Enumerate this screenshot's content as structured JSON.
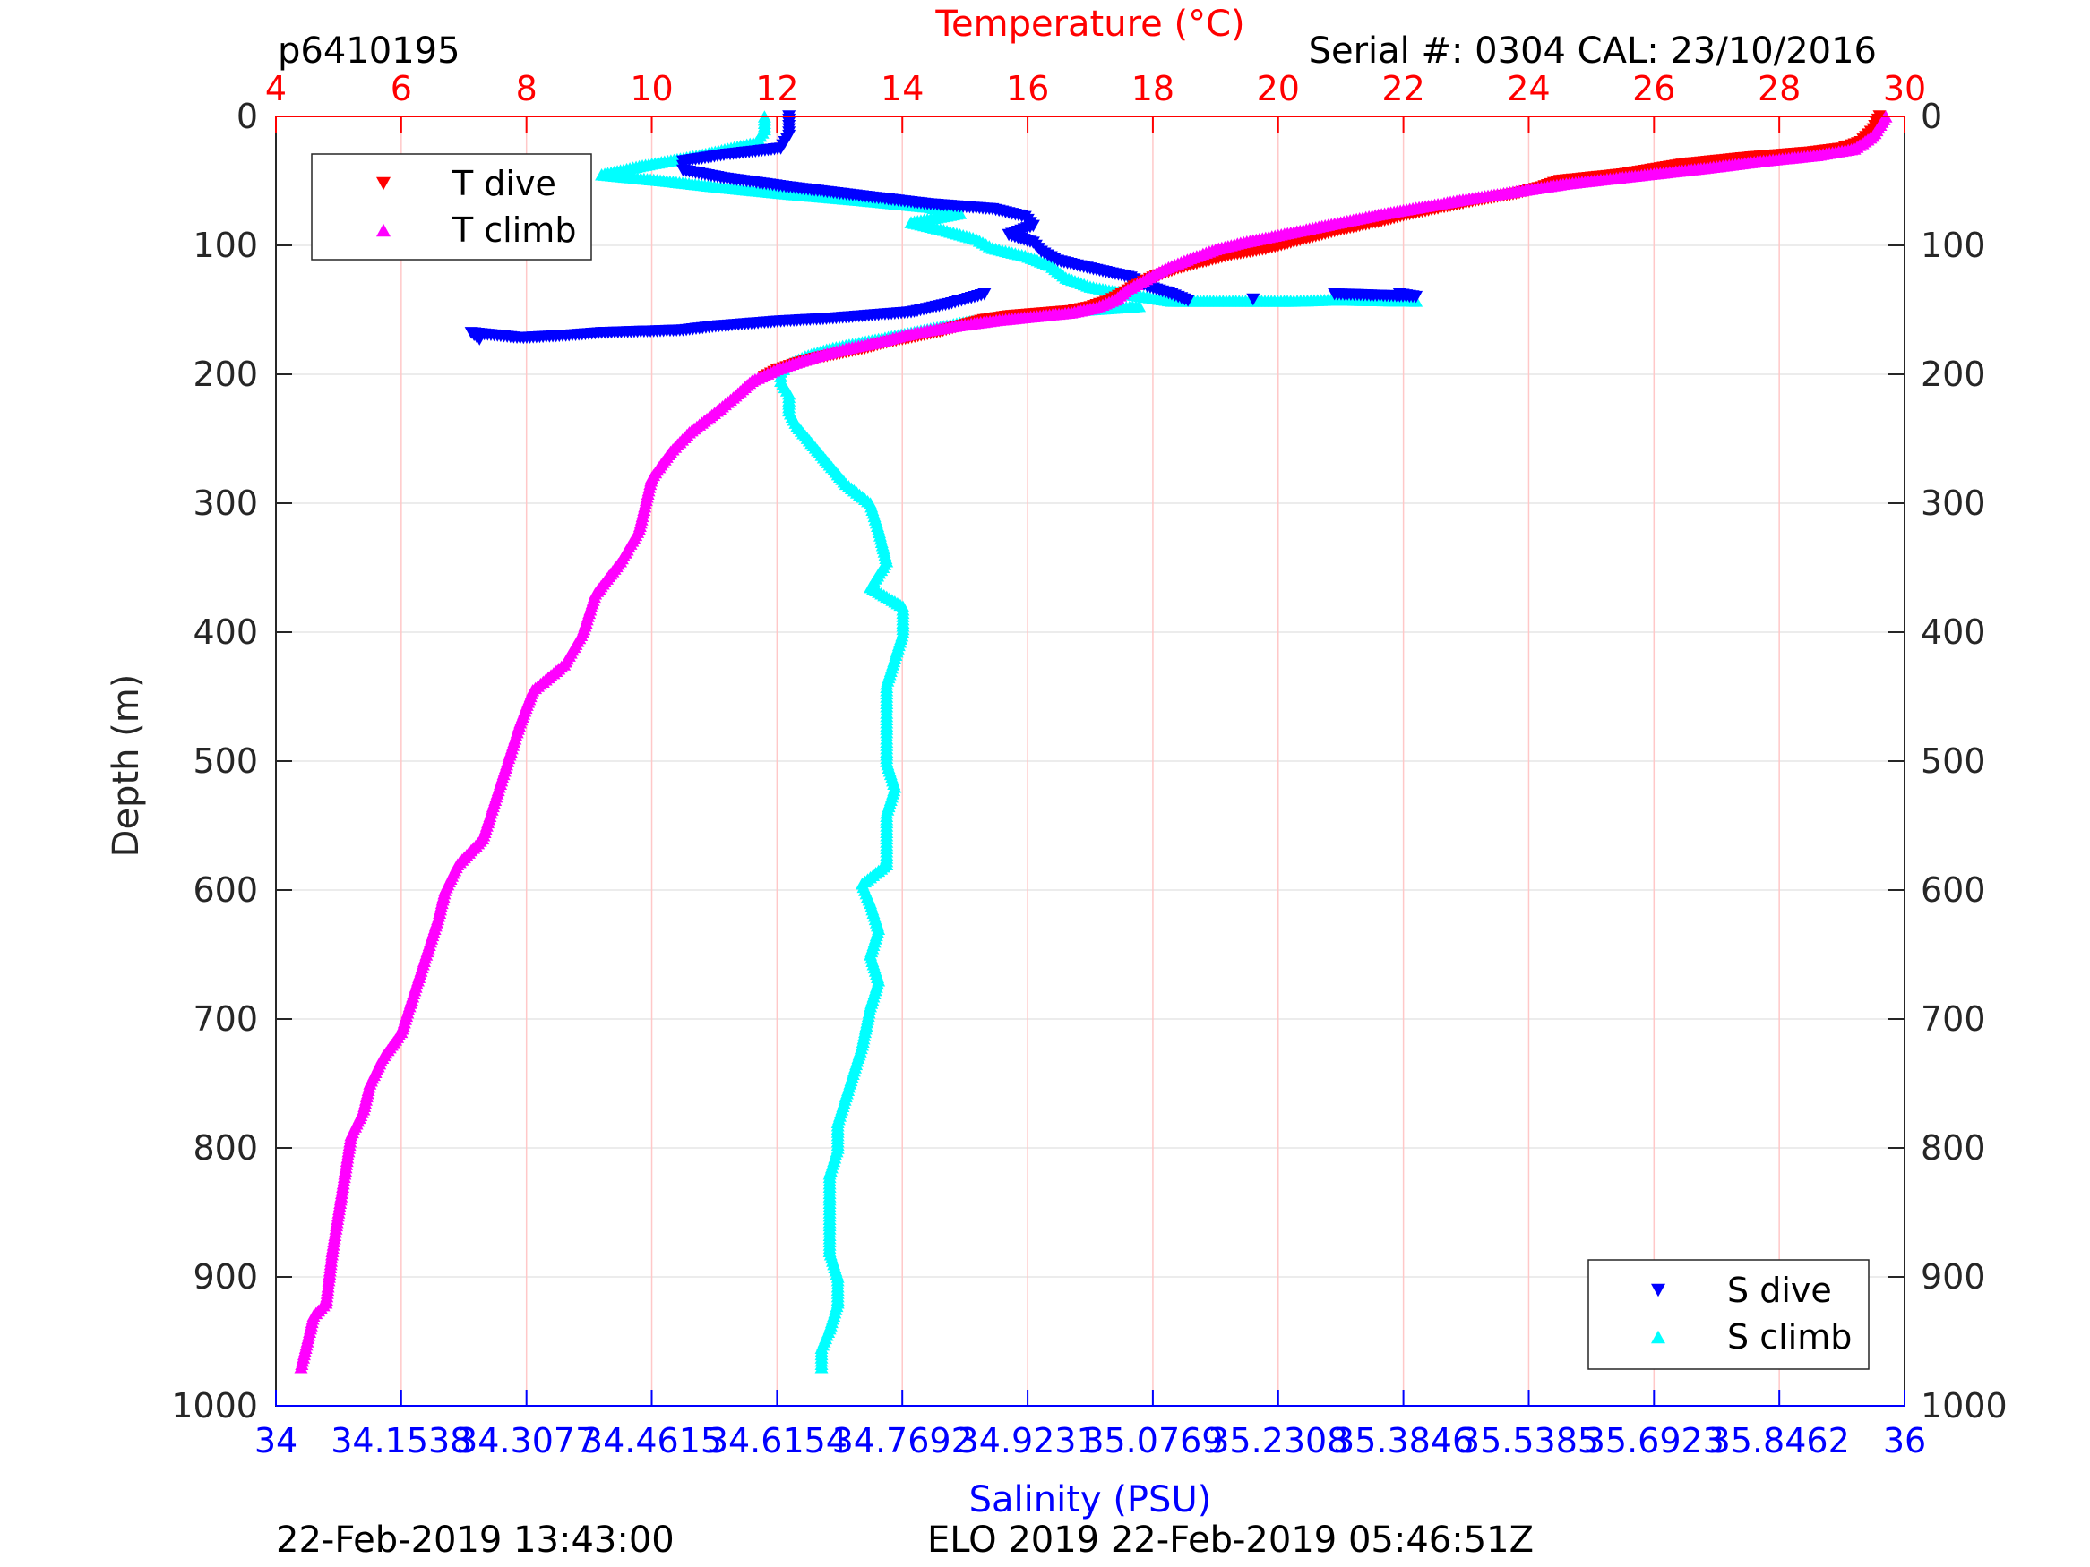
{
  "colors": {
    "temperature_axis": "#ff0000",
    "salinity_axis": "#0000ff",
    "depth_axis": "#262626",
    "t_dive": "#ff0000",
    "t_climb": "#ff00ff",
    "s_dive": "#0000ff",
    "s_climb": "#00ffff",
    "temperature_grid": "#ffc8c8",
    "depth_grid": "#e6e6e6"
  },
  "header": {
    "glider_id": "p6410195",
    "serial_cal": "Serial #: 0304  CAL: 23/10/2016"
  },
  "footer": {
    "left_timestamp": "22-Feb-2019 13:43:00",
    "mission_info": "ELO 2019 22-Feb-2019 05:46:51Z"
  },
  "chart_data": {
    "type": "scatter",
    "title": "",
    "ylabel": "Depth (m)",
    "y_reversed": true,
    "ylim": [
      0,
      1000
    ],
    "yticks": [
      "0",
      "100",
      "200",
      "300",
      "400",
      "500",
      "600",
      "700",
      "800",
      "900",
      "1000"
    ],
    "temperature_axis": {
      "label": "Temperature (°C)",
      "position": "top",
      "range": [
        4,
        30
      ],
      "ticks": [
        "4",
        "6",
        "8",
        "10",
        "12",
        "14",
        "16",
        "18",
        "20",
        "22",
        "24",
        "26",
        "28",
        "30"
      ]
    },
    "salinity_axis": {
      "label": "Salinity (PSU)",
      "position": "bottom",
      "range": [
        34,
        36
      ],
      "ticks": [
        "34",
        "34.1538",
        "34.3077",
        "34.4615",
        "34.6154",
        "34.7692",
        "34.9231",
        "35.0769",
        "35.2308",
        "35.3846",
        "35.5385",
        "35.6923",
        "35.8462",
        "36"
      ]
    },
    "grid": true,
    "legends": [
      {
        "placement": "top-left",
        "entries": [
          "T dive",
          "T climb"
        ]
      },
      {
        "placement": "bottom-right",
        "entries": [
          "S dive",
          "S climb"
        ]
      }
    ],
    "series": [
      {
        "name": "T dive",
        "axis": "temperature",
        "marker": "down-triangle",
        "points": [
          [
            29.6,
            0
          ],
          [
            29.5,
            10
          ],
          [
            29.3,
            20
          ],
          [
            29.0,
            25
          ],
          [
            28.5,
            28
          ],
          [
            27.5,
            32
          ],
          [
            26.5,
            37
          ],
          [
            25.5,
            45
          ],
          [
            24.5,
            50
          ],
          [
            24.2,
            55
          ],
          [
            23.8,
            60
          ],
          [
            23.2,
            65
          ],
          [
            22.5,
            72
          ],
          [
            22.0,
            77
          ],
          [
            21.6,
            82
          ],
          [
            21.0,
            88
          ],
          [
            20.6,
            93
          ],
          [
            20.2,
            98
          ],
          [
            19.8,
            103
          ],
          [
            19.2,
            108
          ],
          [
            18.8,
            113
          ],
          [
            18.4,
            118
          ],
          [
            18.0,
            125
          ],
          [
            17.7,
            132
          ],
          [
            17.5,
            138
          ],
          [
            17.3,
            143
          ],
          [
            17.0,
            148
          ],
          [
            16.7,
            151
          ],
          [
            16.2,
            153
          ],
          [
            15.7,
            155
          ],
          [
            15.3,
            158
          ],
          [
            14.9,
            163
          ],
          [
            14.6,
            167
          ],
          [
            14.3,
            170
          ],
          [
            14.0,
            173
          ],
          [
            13.7,
            176
          ],
          [
            13.4,
            180
          ],
          [
            13.0,
            184
          ],
          [
            12.6,
            188
          ],
          [
            12.3,
            192
          ],
          [
            12.0,
            197
          ],
          [
            11.8,
            202
          ]
        ]
      },
      {
        "name": "T climb",
        "axis": "temperature",
        "marker": "up-triangle",
        "points": [
          [
            29.7,
            0
          ],
          [
            29.5,
            15
          ],
          [
            29.2,
            25
          ],
          [
            28.6,
            30
          ],
          [
            27.8,
            34
          ],
          [
            26.8,
            40
          ],
          [
            25.7,
            46
          ],
          [
            24.6,
            52
          ],
          [
            23.8,
            58
          ],
          [
            23.0,
            64
          ],
          [
            22.3,
            70
          ],
          [
            21.6,
            76
          ],
          [
            21.0,
            82
          ],
          [
            20.4,
            88
          ],
          [
            19.9,
            93
          ],
          [
            19.4,
            98
          ],
          [
            19.0,
            103
          ],
          [
            18.6,
            110
          ],
          [
            18.2,
            118
          ],
          [
            17.9,
            126
          ],
          [
            17.6,
            134
          ],
          [
            17.4,
            142
          ],
          [
            17.1,
            148
          ],
          [
            16.7,
            152
          ],
          [
            16.1,
            155
          ],
          [
            15.5,
            158
          ],
          [
            14.9,
            162
          ],
          [
            14.4,
            166
          ],
          [
            14.0,
            170
          ],
          [
            13.6,
            175
          ],
          [
            13.1,
            180
          ],
          [
            12.7,
            185
          ],
          [
            12.3,
            191
          ],
          [
            12.0,
            196
          ],
          [
            11.6,
            205
          ],
          [
            11.3,
            218
          ],
          [
            11.0,
            230
          ],
          [
            10.6,
            245
          ],
          [
            10.3,
            260
          ],
          [
            10.0,
            280
          ],
          [
            9.9,
            300
          ],
          [
            9.8,
            320
          ],
          [
            9.5,
            345
          ],
          [
            9.1,
            370
          ],
          [
            8.9,
            400
          ],
          [
            8.6,
            425
          ],
          [
            8.1,
            445
          ],
          [
            7.9,
            470
          ],
          [
            7.7,
            500
          ],
          [
            7.5,
            530
          ],
          [
            7.3,
            560
          ],
          [
            6.9,
            580
          ],
          [
            6.7,
            600
          ],
          [
            6.6,
            620
          ],
          [
            6.4,
            650
          ],
          [
            6.2,
            680
          ],
          [
            6.0,
            710
          ],
          [
            5.7,
            730
          ],
          [
            5.5,
            750
          ],
          [
            5.4,
            770
          ],
          [
            5.2,
            790
          ],
          [
            5.1,
            820
          ],
          [
            5.0,
            850
          ],
          [
            4.9,
            880
          ],
          [
            4.8,
            920
          ],
          [
            4.6,
            930
          ],
          [
            4.5,
            950
          ],
          [
            4.4,
            970
          ]
        ]
      },
      {
        "name": "S dive",
        "axis": "salinity",
        "marker": "down-triangle",
        "points": [
          [
            34.63,
            0
          ],
          [
            34.63,
            15
          ],
          [
            34.62,
            25
          ],
          [
            34.55,
            30
          ],
          [
            34.5,
            35
          ],
          [
            34.5,
            42
          ],
          [
            34.55,
            48
          ],
          [
            34.63,
            55
          ],
          [
            34.72,
            62
          ],
          [
            34.8,
            68
          ],
          [
            34.88,
            72
          ],
          [
            34.92,
            78
          ],
          [
            34.93,
            85
          ],
          [
            34.9,
            92
          ],
          [
            34.93,
            98
          ],
          [
            34.94,
            105
          ],
          [
            34.96,
            112
          ],
          [
            35.0,
            118
          ],
          [
            35.05,
            125
          ],
          [
            35.07,
            132
          ],
          [
            35.1,
            138
          ],
          [
            35.12,
            143
          ],
          [
            35.3,
            138
          ],
          [
            35.4,
            140
          ],
          [
            35.38,
            138
          ],
          [
            35.2,
            142
          ],
          [
            34.87,
            138
          ],
          [
            34.83,
            145
          ],
          [
            34.78,
            152
          ],
          [
            34.72,
            155
          ],
          [
            34.68,
            157
          ],
          [
            34.62,
            159
          ],
          [
            34.58,
            161
          ],
          [
            34.54,
            163
          ],
          [
            34.5,
            166
          ],
          [
            34.4,
            168
          ],
          [
            34.36,
            170
          ],
          [
            34.3,
            172
          ],
          [
            34.24,
            168
          ],
          [
            34.25,
            173
          ]
        ]
      },
      {
        "name": "S climb",
        "axis": "salinity",
        "marker": "up-triangle",
        "points": [
          [
            34.6,
            0
          ],
          [
            34.6,
            10
          ],
          [
            34.59,
            20
          ],
          [
            34.52,
            30
          ],
          [
            34.45,
            38
          ],
          [
            34.4,
            45
          ],
          [
            34.48,
            50
          ],
          [
            34.55,
            55
          ],
          [
            34.63,
            60
          ],
          [
            34.72,
            65
          ],
          [
            34.8,
            70
          ],
          [
            34.84,
            75
          ],
          [
            34.78,
            82
          ],
          [
            34.82,
            88
          ],
          [
            34.86,
            95
          ],
          [
            34.88,
            102
          ],
          [
            34.92,
            108
          ],
          [
            34.95,
            115
          ],
          [
            34.97,
            125
          ],
          [
            35.0,
            132
          ],
          [
            35.05,
            138
          ],
          [
            35.1,
            143
          ],
          [
            35.25,
            143
          ],
          [
            35.3,
            142
          ],
          [
            35.4,
            143
          ],
          [
            35.06,
            147
          ],
          [
            34.95,
            152
          ],
          [
            34.88,
            156
          ],
          [
            34.84,
            160
          ],
          [
            34.8,
            165
          ],
          [
            34.76,
            170
          ],
          [
            34.72,
            175
          ],
          [
            34.68,
            180
          ],
          [
            34.65,
            186
          ],
          [
            34.63,
            192
          ],
          [
            34.62,
            198
          ],
          [
            34.62,
            205
          ],
          [
            34.63,
            215
          ],
          [
            34.63,
            228
          ],
          [
            34.64,
            240
          ],
          [
            34.66,
            255
          ],
          [
            34.68,
            270
          ],
          [
            34.7,
            285
          ],
          [
            34.73,
            300
          ],
          [
            34.74,
            320
          ],
          [
            34.75,
            345
          ],
          [
            34.73,
            365
          ],
          [
            34.77,
            380
          ],
          [
            34.77,
            400
          ],
          [
            34.76,
            420
          ],
          [
            34.75,
            440
          ],
          [
            34.75,
            460
          ],
          [
            34.75,
            480
          ],
          [
            34.75,
            500
          ],
          [
            34.76,
            520
          ],
          [
            34.75,
            540
          ],
          [
            34.75,
            560
          ],
          [
            34.75,
            580
          ],
          [
            34.72,
            595
          ],
          [
            34.73,
            610
          ],
          [
            34.74,
            630
          ],
          [
            34.73,
            650
          ],
          [
            34.74,
            670
          ],
          [
            34.73,
            690
          ],
          [
            34.72,
            720
          ],
          [
            34.71,
            740
          ],
          [
            34.7,
            760
          ],
          [
            34.69,
            780
          ],
          [
            34.69,
            800
          ],
          [
            34.68,
            820
          ],
          [
            34.68,
            840
          ],
          [
            34.68,
            860
          ],
          [
            34.68,
            880
          ],
          [
            34.69,
            900
          ],
          [
            34.69,
            920
          ],
          [
            34.68,
            940
          ],
          [
            34.67,
            955
          ],
          [
            34.67,
            970
          ]
        ]
      }
    ]
  }
}
